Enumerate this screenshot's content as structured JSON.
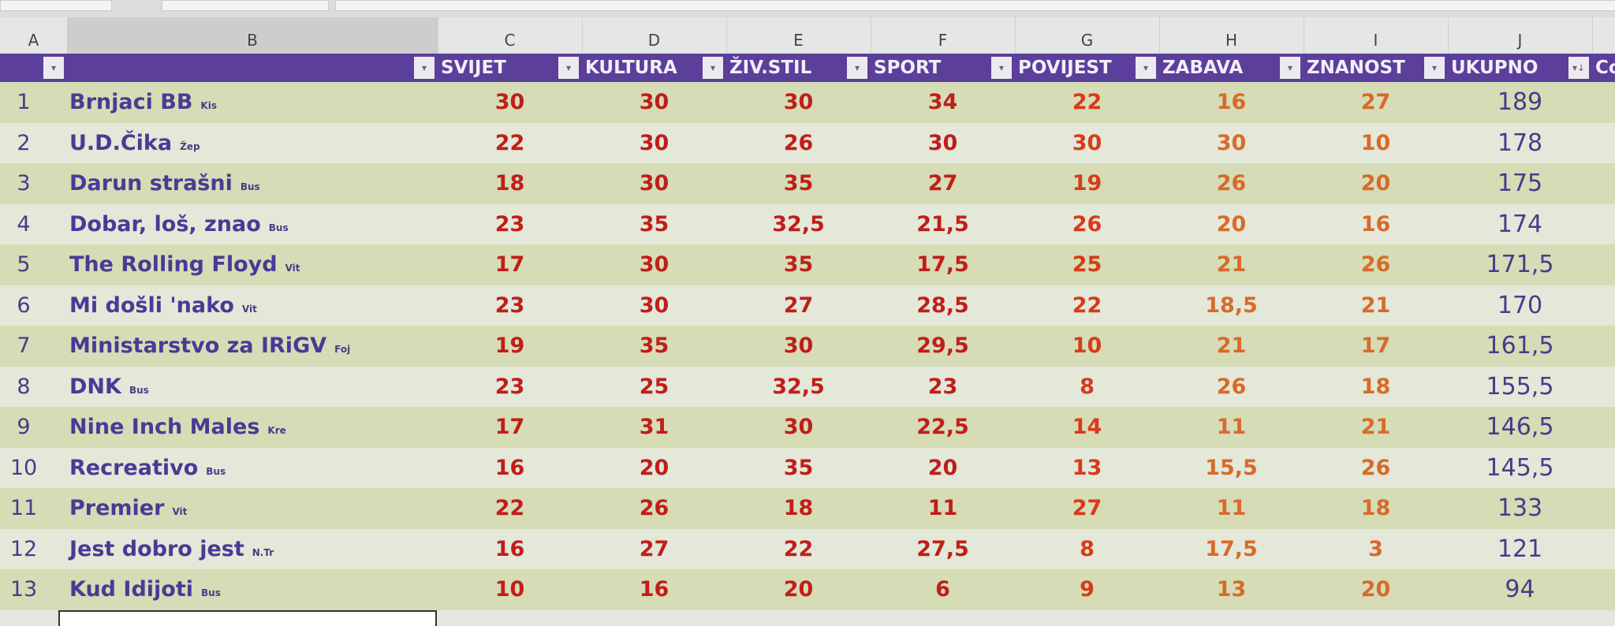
{
  "column_letters": [
    "A",
    "B",
    "C",
    "D",
    "E",
    "F",
    "G",
    "H",
    "I",
    "J"
  ],
  "table_headers": [
    "",
    "",
    "SVIJET",
    "KULTURA",
    "ŽIV.STIL",
    "SPORT",
    "POVIJEST",
    "ZABAVA",
    "ZNANOST",
    "UKUPNO",
    "Co"
  ],
  "rows": [
    {
      "rank": "1",
      "team": "Brnjaci BB",
      "tag": "Kis",
      "scores": [
        "30",
        "30",
        "30",
        "34",
        "22",
        "16",
        "27"
      ],
      "total": "189"
    },
    {
      "rank": "2",
      "team": "U.D.Čika",
      "tag": "Žep",
      "scores": [
        "22",
        "30",
        "26",
        "30",
        "30",
        "30",
        "10"
      ],
      "total": "178"
    },
    {
      "rank": "3",
      "team": "Darun strašni",
      "tag": "Bus",
      "scores": [
        "18",
        "30",
        "35",
        "27",
        "19",
        "26",
        "20"
      ],
      "total": "175"
    },
    {
      "rank": "4",
      "team": "Dobar, loš, znao",
      "tag": "Bus",
      "scores": [
        "23",
        "35",
        "32,5",
        "21,5",
        "26",
        "20",
        "16"
      ],
      "total": "174"
    },
    {
      "rank": "5",
      "team": "The Rolling Floyd",
      "tag": "Vit",
      "scores": [
        "17",
        "30",
        "35",
        "17,5",
        "25",
        "21",
        "26"
      ],
      "total": "171,5"
    },
    {
      "rank": "6",
      "team": "Mi došli 'nako",
      "tag": "Vit",
      "scores": [
        "23",
        "30",
        "27",
        "28,5",
        "22",
        "18,5",
        "21"
      ],
      "total": "170"
    },
    {
      "rank": "7",
      "team": "Ministarstvo za IRiGV",
      "tag": "Foj",
      "scores": [
        "19",
        "35",
        "30",
        "29,5",
        "10",
        "21",
        "17"
      ],
      "total": "161,5"
    },
    {
      "rank": "8",
      "team": "DNK",
      "tag": "Bus",
      "scores": [
        "23",
        "25",
        "32,5",
        "23",
        "8",
        "26",
        "18"
      ],
      "total": "155,5"
    },
    {
      "rank": "9",
      "team": "Nine Inch Males",
      "tag": "Kre",
      "scores": [
        "17",
        "31",
        "30",
        "22,5",
        "14",
        "11",
        "21"
      ],
      "total": "146,5"
    },
    {
      "rank": "10",
      "team": "Recreativo",
      "tag": "Bus",
      "scores": [
        "16",
        "20",
        "35",
        "20",
        "13",
        "15,5",
        "26"
      ],
      "total": "145,5"
    },
    {
      "rank": "11",
      "team": "Premier",
      "tag": "Vit",
      "scores": [
        "22",
        "26",
        "18",
        "11",
        "27",
        "11",
        "18"
      ],
      "total": "133"
    },
    {
      "rank": "12",
      "team": "Jest dobro jest",
      "tag": "N.Tr",
      "scores": [
        "16",
        "27",
        "22",
        "27,5",
        "8",
        "17,5",
        "3"
      ],
      "total": "121"
    },
    {
      "rank": "13",
      "team": "Kud Idijoti",
      "tag": "Bus",
      "scores": [
        "10",
        "16",
        "20",
        "6",
        "9",
        "13",
        "20"
      ],
      "total": "94"
    }
  ],
  "colors": {
    "header": "#5b3f9a",
    "score": "#c01e1a",
    "total": "#4a3a8a"
  }
}
